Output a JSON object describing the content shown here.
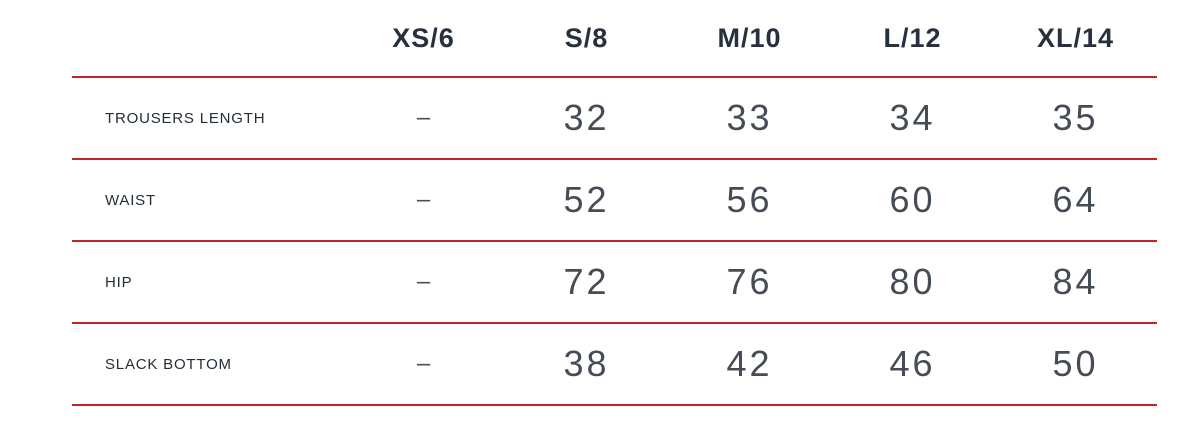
{
  "table": {
    "divider_color": "#c1232b",
    "columns": [
      "XS/6",
      "S/8",
      "M/10",
      "L/12",
      "XL/14"
    ],
    "rows": [
      {
        "label": "TROUSERS LENGTH",
        "values": [
          "–",
          "32",
          "33",
          "34",
          "35"
        ]
      },
      {
        "label": "WAIST",
        "values": [
          "–",
          "52",
          "56",
          "60",
          "64"
        ]
      },
      {
        "label": "HIP",
        "values": [
          "–",
          "72",
          "76",
          "80",
          "84"
        ]
      },
      {
        "label": "SLACK BOTTOM",
        "values": [
          "–",
          "38",
          "42",
          "46",
          "50"
        ]
      }
    ]
  }
}
